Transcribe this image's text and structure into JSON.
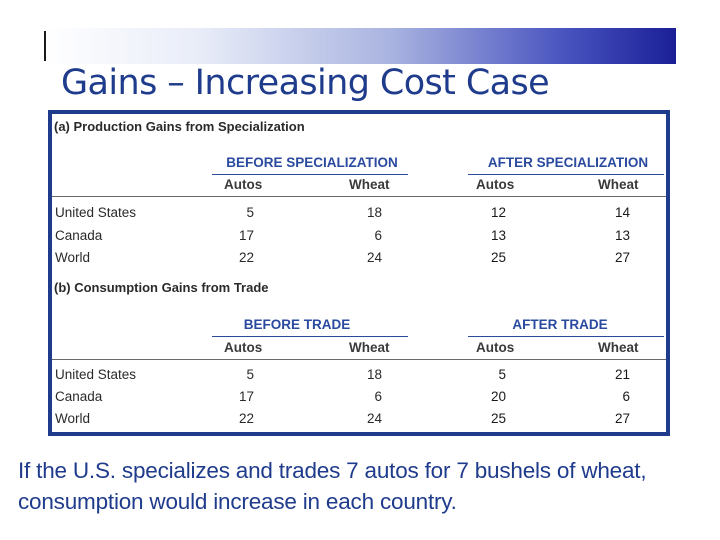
{
  "slide": {
    "title": "Gains – Increasing Cost Case",
    "caption": "If the U.S. specializes and trades 7 autos for 7 bushels of wheat, consumption would increase in each country."
  },
  "table": {
    "section_a": {
      "title": "(a) Production Gains from Specialization",
      "group_left": "BEFORE SPECIALIZATION",
      "group_right": "AFTER SPECIALIZATION",
      "columns": [
        "Autos",
        "Wheat",
        "Autos",
        "Wheat"
      ],
      "rows": [
        {
          "label": "United States",
          "values": [
            "5",
            "18",
            "12",
            "14"
          ]
        },
        {
          "label": "Canada",
          "values": [
            "17",
            "6",
            "13",
            "13"
          ]
        },
        {
          "label": "World",
          "values": [
            "22",
            "24",
            "25",
            "27"
          ]
        }
      ]
    },
    "section_b": {
      "title": "(b) Consumption Gains from Trade",
      "group_left": "BEFORE TRADE",
      "group_right": "AFTER TRADE",
      "columns": [
        "Autos",
        "Wheat",
        "Autos",
        "Wheat"
      ],
      "rows": [
        {
          "label": "United States",
          "values": [
            "5",
            "18",
            "5",
            "21"
          ]
        },
        {
          "label": "Canada",
          "values": [
            "17",
            "6",
            "20",
            "6"
          ]
        },
        {
          "label": "World",
          "values": [
            "22",
            "24",
            "25",
            "27"
          ]
        }
      ]
    }
  }
}
